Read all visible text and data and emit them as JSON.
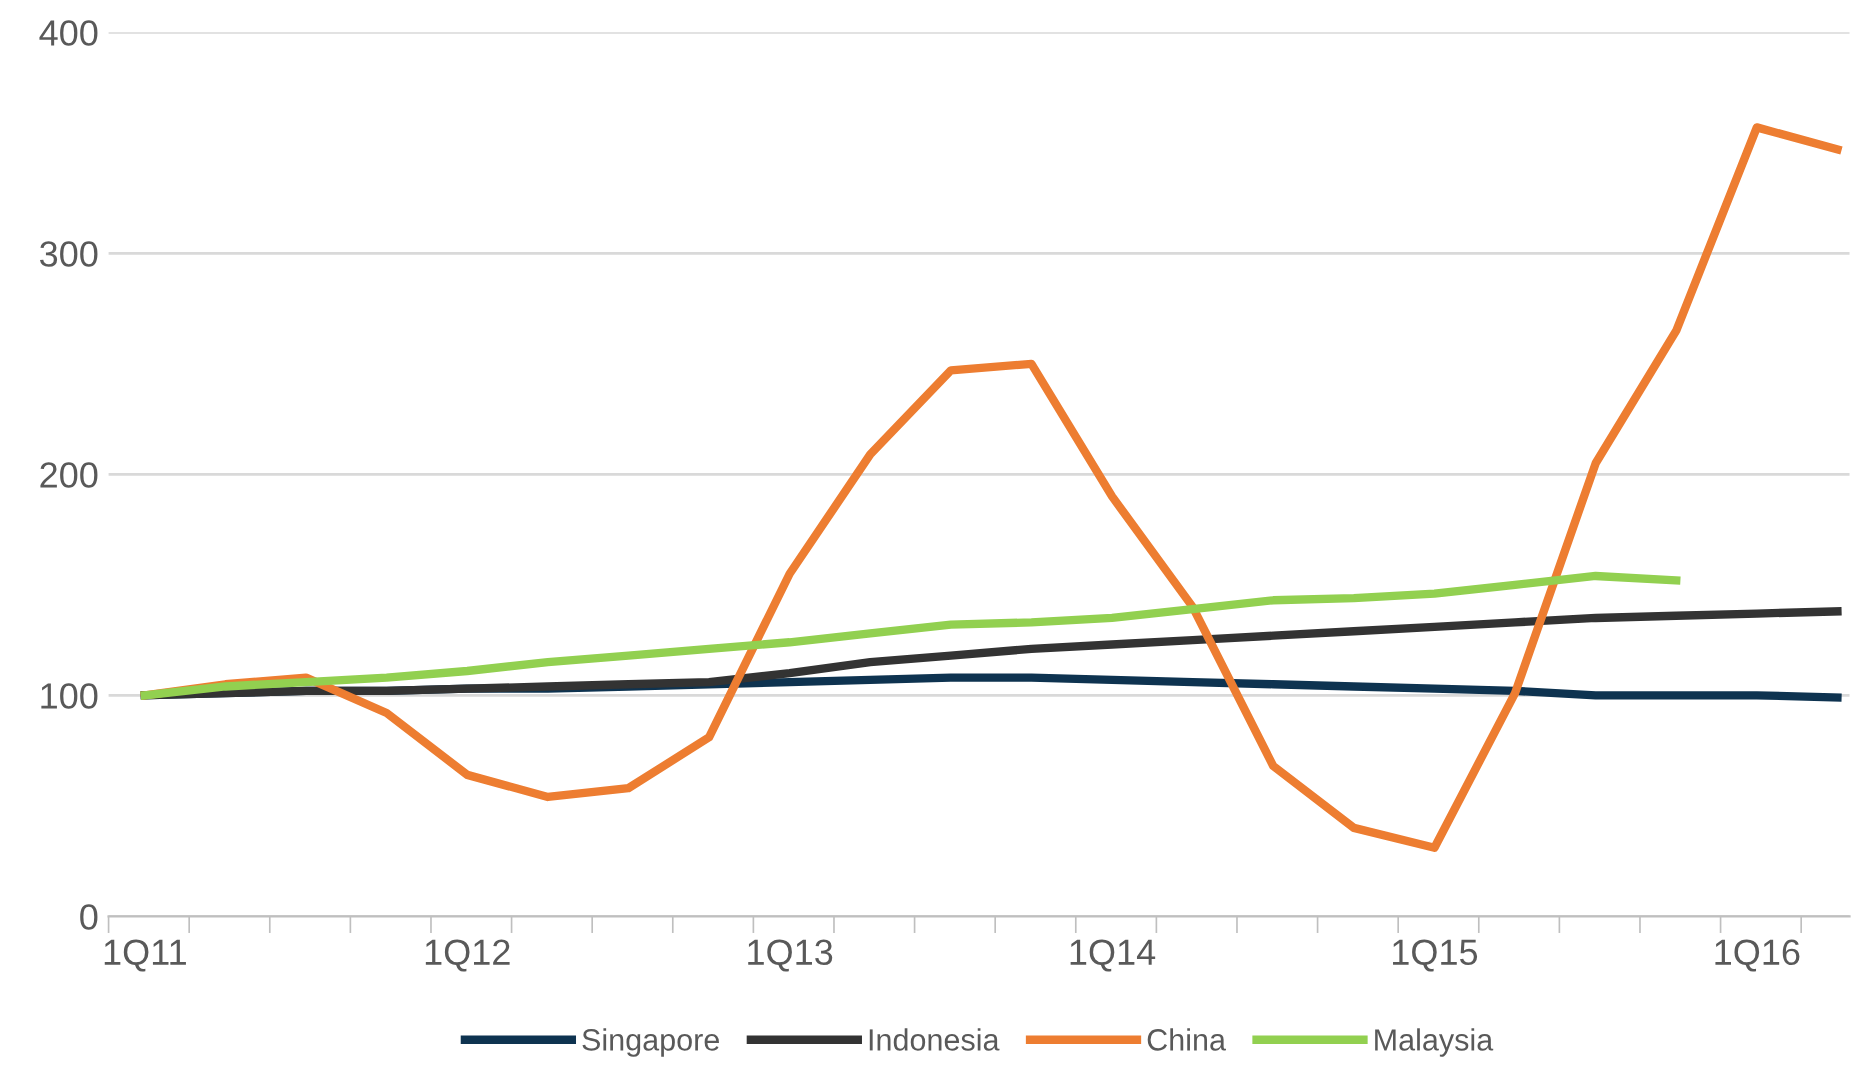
{
  "chart_data": {
    "type": "line",
    "categories": [
      "1Q11",
      null,
      null,
      null,
      "1Q12",
      null,
      null,
      null,
      "1Q13",
      null,
      null,
      null,
      "1Q14",
      null,
      null,
      null,
      "1Q15",
      null,
      null,
      null,
      "1Q16",
      null
    ],
    "ylim": [
      0,
      400
    ],
    "yticks": [
      0,
      100,
      200,
      300,
      400
    ],
    "grid": "y",
    "legend": "bottom",
    "line_style": "solid",
    "marker": "none",
    "series": [
      {
        "name": "Singapore",
        "color": "#0e3350",
        "values": [
          100,
          101,
          102,
          102,
          103,
          103,
          104,
          105,
          106,
          107,
          108,
          108,
          107,
          106,
          105,
          104,
          103,
          102,
          100,
          100,
          100,
          99
        ]
      },
      {
        "name": "Indonesia",
        "color": "#333333",
        "values": [
          100,
          101,
          102,
          102,
          103,
          104,
          105,
          106,
          110,
          115,
          118,
          121,
          123,
          125,
          127,
          129,
          131,
          133,
          135,
          136,
          137,
          138
        ]
      },
      {
        "name": "China",
        "color": "#ed7d31",
        "values": [
          100,
          105,
          108,
          92,
          64,
          54,
          58,
          81,
          155,
          209,
          247,
          250,
          190,
          140,
          68,
          40,
          31,
          101,
          205,
          265,
          357,
          347
        ]
      },
      {
        "name": "Malaysia",
        "color": "#92d050",
        "values": [
          100,
          104,
          106,
          108,
          111,
          115,
          118,
          121,
          124,
          128,
          132,
          133,
          135,
          139,
          143,
          144,
          146,
          150,
          154,
          152,
          null,
          null
        ]
      }
    ]
  }
}
